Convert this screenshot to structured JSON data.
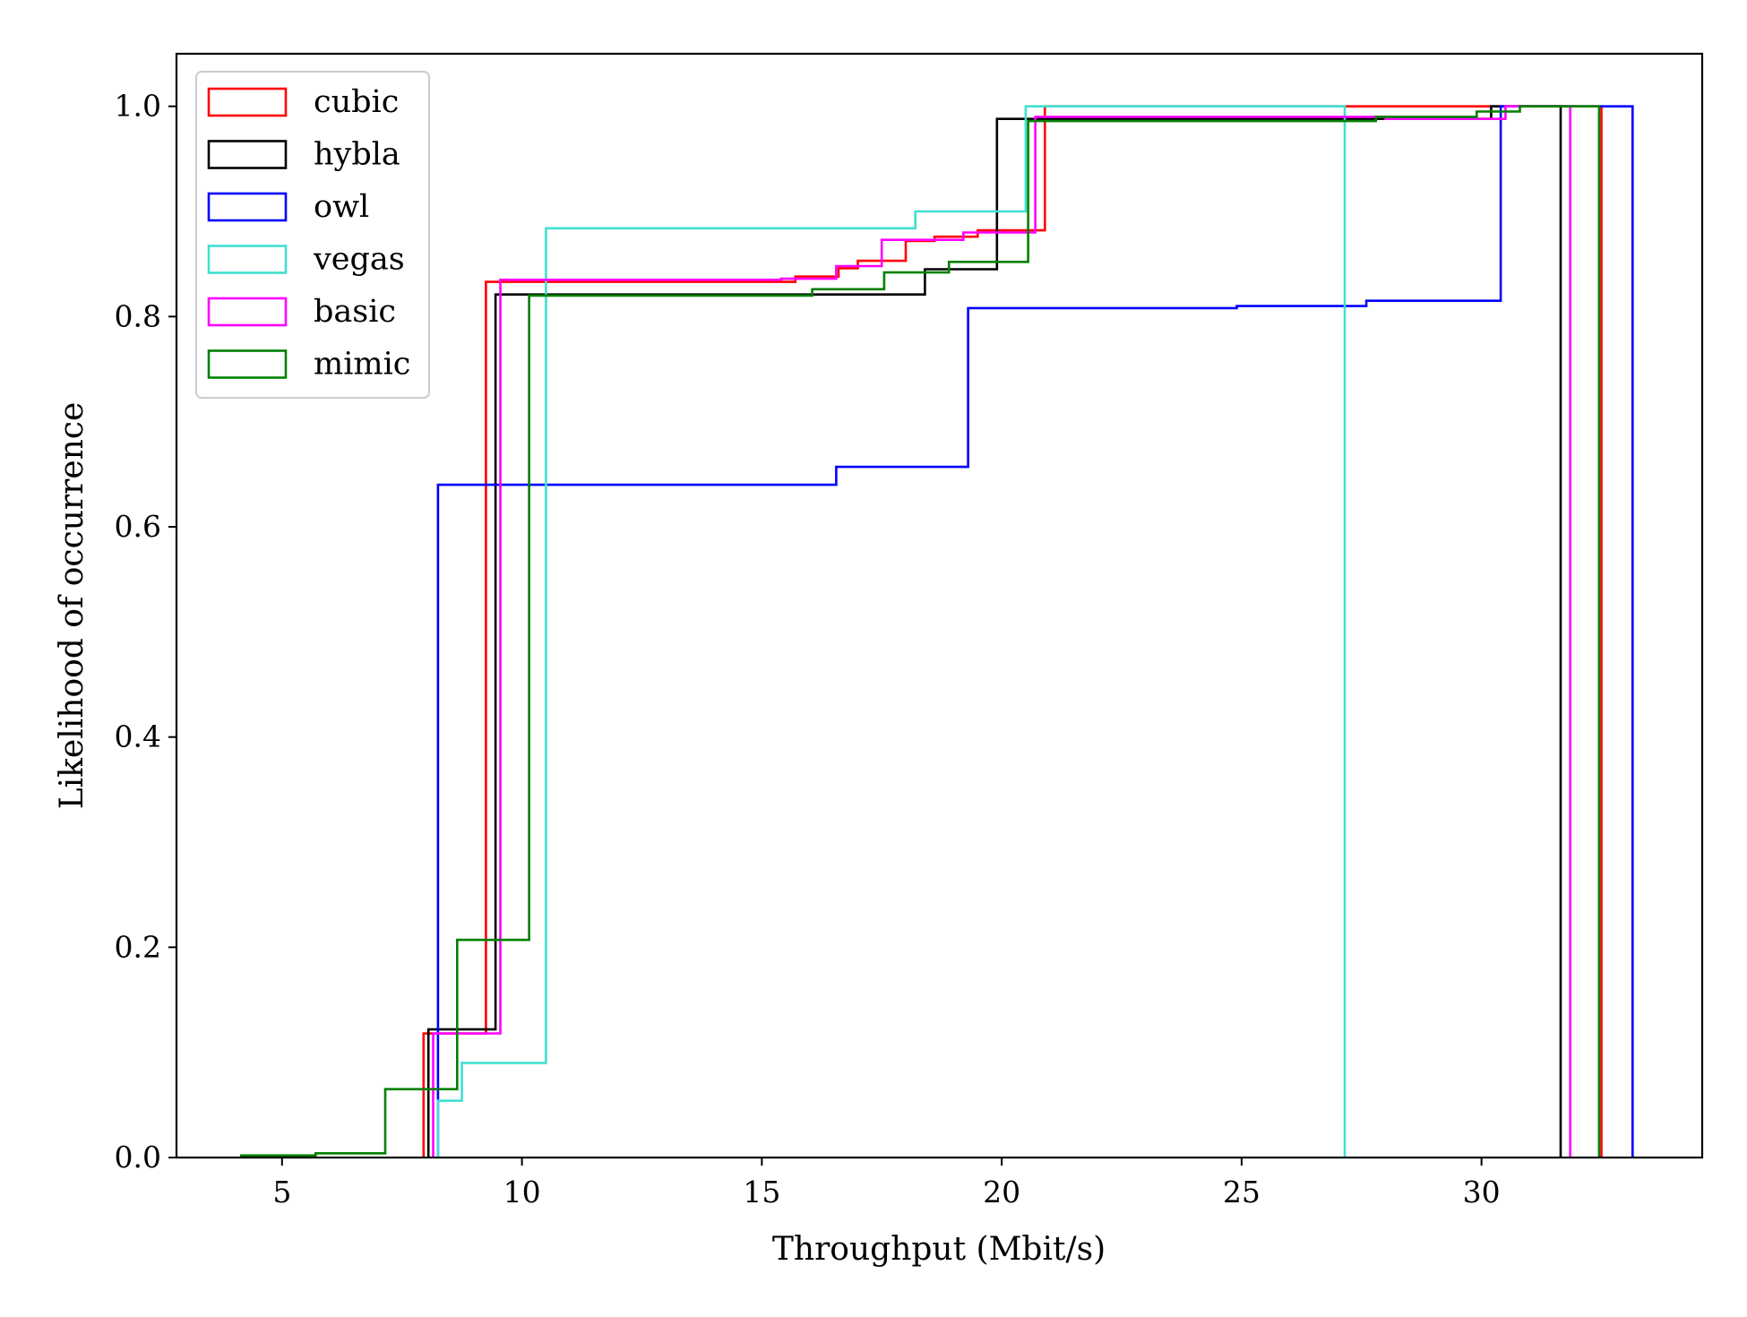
{
  "chart_data": {
    "type": "line",
    "title": "",
    "xlabel": "Throughput (Mbit/s)",
    "ylabel": "Likelihood of occurrence",
    "xlim": [
      2.8,
      34.6
    ],
    "ylim": [
      0,
      1.05
    ],
    "xticks": [
      5,
      10,
      15,
      20,
      25,
      30
    ],
    "yticks": [
      0.0,
      0.2,
      0.4,
      0.6,
      0.8,
      1.0
    ],
    "xtick_labels": [
      "5",
      "10",
      "15",
      "20",
      "25",
      "30"
    ],
    "ytick_labels": [
      "0.0",
      "0.2",
      "0.4",
      "0.6",
      "0.8",
      "1.0"
    ],
    "grid": false,
    "legend_position": "top-left",
    "series": [
      {
        "name": "cubic",
        "color": "#ff0000",
        "points": [
          [
            7.95,
            0
          ],
          [
            7.95,
            0.118
          ],
          [
            9.25,
            0.118
          ],
          [
            9.25,
            0.833
          ],
          [
            15.7,
            0.833
          ],
          [
            15.7,
            0.838
          ],
          [
            16.6,
            0.838
          ],
          [
            16.6,
            0.846
          ],
          [
            17.0,
            0.846
          ],
          [
            17.0,
            0.853
          ],
          [
            18.0,
            0.853
          ],
          [
            18.0,
            0.872
          ],
          [
            18.6,
            0.872
          ],
          [
            18.6,
            0.876
          ],
          [
            19.5,
            0.876
          ],
          [
            19.5,
            0.882
          ],
          [
            20.9,
            0.882
          ],
          [
            20.9,
            1.0
          ],
          [
            32.5,
            1.0
          ],
          [
            32.5,
            0
          ]
        ]
      },
      {
        "name": "hybla",
        "color": "#000000",
        "points": [
          [
            8.05,
            0
          ],
          [
            8.05,
            0.122
          ],
          [
            9.45,
            0.122
          ],
          [
            9.45,
            0.821
          ],
          [
            18.4,
            0.821
          ],
          [
            18.4,
            0.845
          ],
          [
            19.9,
            0.845
          ],
          [
            19.9,
            0.988
          ],
          [
            30.2,
            0.988
          ],
          [
            30.2,
            1.0
          ],
          [
            31.65,
            1.0
          ],
          [
            31.65,
            0
          ]
        ]
      },
      {
        "name": "owl",
        "color": "#0000ff",
        "points": [
          [
            8.25,
            0
          ],
          [
            8.25,
            0.64
          ],
          [
            16.55,
            0.64
          ],
          [
            16.55,
            0.657
          ],
          [
            19.3,
            0.657
          ],
          [
            19.3,
            0.808
          ],
          [
            24.9,
            0.808
          ],
          [
            24.9,
            0.81
          ],
          [
            27.6,
            0.81
          ],
          [
            27.6,
            0.815
          ],
          [
            30.4,
            0.815
          ],
          [
            30.4,
            1.0
          ],
          [
            33.15,
            1.0
          ],
          [
            33.15,
            0
          ]
        ]
      },
      {
        "name": "vegas",
        "color": "#40e0d0",
        "points": [
          [
            8.25,
            0
          ],
          [
            8.25,
            0.054
          ],
          [
            8.75,
            0.054
          ],
          [
            8.75,
            0.09
          ],
          [
            10.5,
            0.09
          ],
          [
            10.5,
            0.884
          ],
          [
            18.2,
            0.884
          ],
          [
            18.2,
            0.9
          ],
          [
            20.5,
            0.9
          ],
          [
            20.5,
            1.0
          ],
          [
            27.15,
            1.0
          ],
          [
            27.15,
            0
          ]
        ]
      },
      {
        "name": "basic",
        "color": "#ff00ff",
        "points": [
          [
            8.15,
            0
          ],
          [
            8.15,
            0.118
          ],
          [
            9.55,
            0.118
          ],
          [
            9.55,
            0.835
          ],
          [
            15.4,
            0.835
          ],
          [
            15.4,
            0.836
          ],
          [
            16.55,
            0.836
          ],
          [
            16.55,
            0.848
          ],
          [
            17.5,
            0.848
          ],
          [
            17.5,
            0.873
          ],
          [
            19.2,
            0.873
          ],
          [
            19.2,
            0.88
          ],
          [
            20.7,
            0.88
          ],
          [
            20.7,
            0.99
          ],
          [
            28.0,
            0.99
          ],
          [
            28.0,
            0.988
          ],
          [
            30.5,
            0.988
          ],
          [
            30.5,
            1.0
          ],
          [
            31.85,
            1.0
          ],
          [
            31.85,
            0
          ]
        ]
      },
      {
        "name": "mimic",
        "color": "#008000",
        "points": [
          [
            4.15,
            0
          ],
          [
            4.15,
            0.002
          ],
          [
            5.7,
            0.002
          ],
          [
            5.7,
            0.004
          ],
          [
            7.15,
            0.004
          ],
          [
            7.15,
            0.065
          ],
          [
            8.65,
            0.065
          ],
          [
            8.65,
            0.207
          ],
          [
            10.15,
            0.207
          ],
          [
            10.15,
            0.82
          ],
          [
            16.05,
            0.82
          ],
          [
            16.05,
            0.826
          ],
          [
            17.55,
            0.826
          ],
          [
            17.55,
            0.842
          ],
          [
            18.9,
            0.842
          ],
          [
            18.9,
            0.852
          ],
          [
            20.55,
            0.852
          ],
          [
            20.55,
            0.986
          ],
          [
            27.8,
            0.986
          ],
          [
            27.8,
            0.99
          ],
          [
            29.9,
            0.99
          ],
          [
            29.9,
            0.995
          ],
          [
            30.8,
            0.995
          ],
          [
            30.8,
            1.0
          ],
          [
            32.45,
            1.0
          ],
          [
            32.45,
            0
          ]
        ]
      }
    ]
  }
}
